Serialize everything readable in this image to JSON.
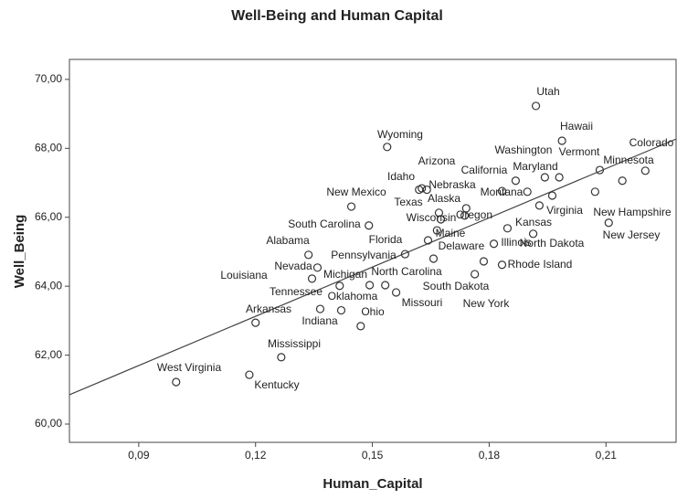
{
  "chart_data": {
    "type": "scatter",
    "title": "Well-Being and Human Capital",
    "x_label": "Human_Capital",
    "y_label": "Well_Being",
    "xlim": [
      0.0722,
      0.228
    ],
    "ylim": [
      59.47,
      70.58
    ],
    "xticks": [
      {
        "value": 0.09,
        "label": "0,09"
      },
      {
        "value": 0.12,
        "label": "0,12"
      },
      {
        "value": 0.15,
        "label": "0,15"
      },
      {
        "value": 0.18,
        "label": "0,18"
      },
      {
        "value": 0.21,
        "label": "0,21"
      }
    ],
    "yticks": [
      {
        "value": 60,
        "label": "60,00"
      },
      {
        "value": 62,
        "label": "62,00"
      },
      {
        "value": 64,
        "label": "64,00"
      },
      {
        "value": 66,
        "label": "66,00"
      },
      {
        "value": 68,
        "label": "68,00"
      },
      {
        "value": 70,
        "label": "70,00"
      }
    ],
    "labels": [
      "Utah",
      "Hawaii",
      "Wyoming",
      "Colorado",
      "Minnesota",
      "Vermont",
      "Washington",
      "Maryland",
      "California",
      "Arizona",
      "Idaho",
      "New Mexico",
      "Montana",
      "Virginia",
      null,
      null,
      "New Hampshire",
      "New Jersey",
      "Nebraska",
      "Texas",
      "Wisconsin",
      "Alaska",
      "Oregon",
      "Maine",
      "Kansas",
      "Florida",
      "South Carolina",
      "Alabama",
      "Illinois",
      "North Dakota",
      "Pennsylvania",
      "Delaware",
      "Nevada",
      "Rhode Island",
      "Louisiana",
      "Michigan",
      "North Carolina",
      "Missouri",
      "Oklahoma",
      "South Dakota",
      "New York",
      "Tennessee",
      "Arkansas",
      "Ohio",
      "Indiana",
      "Mississippi",
      "Kentucky",
      "West Virginia"
    ],
    "x": [
      0.192,
      0.1987,
      0.1538,
      0.2201,
      0.2142,
      0.198,
      0.1943,
      0.1868,
      0.1833,
      0.1627,
      0.162,
      0.1446,
      0.1898,
      0.1962,
      0.1929,
      0.2084,
      0.2072,
      0.2107,
      0.164,
      0.1671,
      0.1676,
      0.1741,
      0.1737,
      0.1666,
      0.1913,
      0.1643,
      0.1491,
      0.1336,
      0.1812,
      0.1847,
      0.1584,
      0.1657,
      0.1359,
      0.1833,
      0.1345,
      0.1416,
      0.1493,
      0.1533,
      0.1561,
      0.1763,
      0.1786,
      0.1366,
      0.12,
      0.147,
      0.142,
      0.1266,
      0.1184,
      0.0996
    ],
    "values": [
      69.23,
      68.22,
      68.04,
      67.35,
      67.06,
      67.16,
      67.16,
      67.06,
      66.76,
      66.84,
      66.8,
      66.31,
      66.74,
      66.63,
      66.34,
      67.37,
      66.74,
      65.84,
      66.8,
      66.13,
      65.94,
      66.26,
      66.05,
      65.62,
      65.52,
      65.33,
      65.76,
      64.91,
      65.23,
      65.68,
      64.93,
      64.8,
      64.54,
      64.62,
      64.22,
      64.01,
      64.03,
      64.03,
      63.82,
      64.35,
      64.72,
      63.34,
      62.94,
      62.84,
      63.3,
      61.94,
      61.43,
      61.22
    ],
    "fit_line": {
      "x": [
        0.0722,
        0.228
      ],
      "y": [
        60.85,
        68.27
      ]
    },
    "color": "#333333"
  }
}
